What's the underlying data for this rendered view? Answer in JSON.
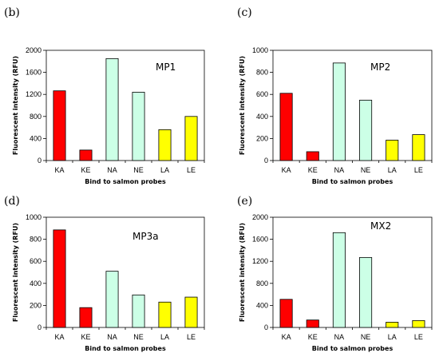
{
  "chart_data": [
    {
      "type": "bar",
      "panel": "(b)",
      "title": "MP1",
      "xlabel": "Bind to salmon probes",
      "ylabel": "Fluorescent intensity (RFU)",
      "ylim": [
        0,
        2000
      ],
      "yticks": [
        0,
        400,
        800,
        1200,
        1600,
        2000
      ],
      "categories": [
        "KA",
        "KE",
        "NA",
        "NE",
        "LA",
        "LE"
      ],
      "values": [
        1265,
        190,
        1850,
        1240,
        560,
        800
      ]
    },
    {
      "type": "bar",
      "panel": "(c)",
      "title": "MP2",
      "xlabel": "Bind to salmon probes",
      "ylabel": "Fluorescent intensity (RFU)",
      "ylim": [
        0,
        1000
      ],
      "yticks": [
        0,
        200,
        400,
        600,
        800,
        1000
      ],
      "categories": [
        "KA",
        "KE",
        "NA",
        "NE",
        "LA",
        "LE"
      ],
      "values": [
        610,
        80,
        885,
        548,
        185,
        235
      ]
    },
    {
      "type": "bar",
      "panel": "(d)",
      "title": "MP3a",
      "xlabel": "Bind to salmon probes",
      "ylabel": "Fluorescent intensity (RFU)",
      "ylim": [
        0,
        1000
      ],
      "yticks": [
        0,
        200,
        400,
        600,
        800,
        1000
      ],
      "categories": [
        "KA",
        "KE",
        "NA",
        "NE",
        "LA",
        "LE"
      ],
      "values": [
        885,
        180,
        510,
        295,
        230,
        275
      ]
    },
    {
      "type": "bar",
      "panel": "(e)",
      "title": "MX2",
      "xlabel": "Bind to salmon probes",
      "ylabel": "Fluorescent intensity (RFU)",
      "ylim": [
        0,
        2000
      ],
      "yticks": [
        0,
        400,
        800,
        1200,
        1600,
        2000
      ],
      "categories": [
        "KA",
        "KE",
        "NA",
        "NE",
        "LA",
        "LE"
      ],
      "values": [
        510,
        135,
        1720,
        1270,
        95,
        125
      ]
    }
  ],
  "colors": {
    "KA": "#ff0000",
    "KE": "#ff0000",
    "NA": "#ccffe6",
    "NE": "#ccffe6",
    "LA": "#ffff00",
    "LE": "#ffff00"
  }
}
